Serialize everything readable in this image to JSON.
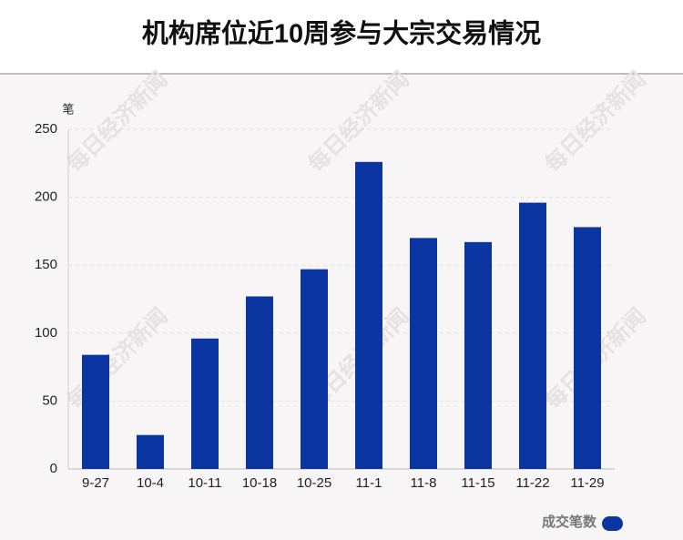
{
  "chart_data": {
    "type": "bar",
    "title": "机构席位近10周参与大宗交易情况",
    "y_unit": "笔",
    "categories": [
      "9-27",
      "10-4",
      "10-11",
      "10-18",
      "10-25",
      "11-1",
      "11-8",
      "11-15",
      "11-22",
      "11-29"
    ],
    "series": [
      {
        "name": "成交笔数",
        "color": "#0b35a0",
        "values": [
          84,
          25,
          96,
          127,
          147,
          226,
          170,
          167,
          196,
          178
        ]
      }
    ],
    "ylim": [
      0,
      250
    ],
    "yticks": [
      0,
      50,
      100,
      150,
      200,
      250
    ],
    "grid": true,
    "legend": "bottom-right",
    "watermark": "每日经济新闻"
  }
}
